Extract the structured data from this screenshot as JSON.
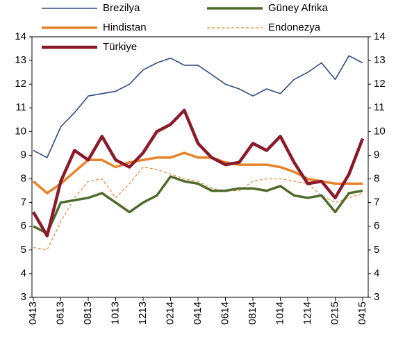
{
  "chart_data": {
    "type": "line",
    "categories": [
      "0413",
      null,
      "0613",
      null,
      "0813",
      null,
      "1013",
      null,
      "1213",
      null,
      "0214",
      null,
      "0414",
      null,
      "0614",
      null,
      "0814",
      null,
      "1014",
      null,
      "1214",
      null,
      "0215",
      null,
      "0415"
    ],
    "series": [
      {
        "name": "Brezilya",
        "color": "#2e4a7f",
        "values": [
          9.2,
          8.9,
          10.2,
          10.8,
          11.5,
          11.6,
          11.7,
          12.0,
          12.6,
          12.9,
          13.1,
          12.8,
          12.8,
          12.4,
          12.0,
          11.8,
          11.5,
          11.8,
          11.6,
          12.2,
          12.5,
          12.9,
          12.2,
          13.2,
          12.9
        ]
      },
      {
        "name": "Güney Afrika",
        "color": "#4e6b2a",
        "values": [
          6.0,
          5.7,
          7.0,
          7.1,
          7.2,
          7.4,
          7.0,
          6.6,
          7.0,
          7.3,
          8.1,
          7.9,
          7.8,
          7.5,
          7.5,
          7.6,
          7.6,
          7.5,
          7.7,
          7.3,
          7.2,
          7.3,
          6.6,
          7.4,
          7.5
        ]
      },
      {
        "name": "Hindistan",
        "color": "#e8832a",
        "values": [
          7.9,
          7.4,
          7.8,
          8.3,
          8.8,
          8.8,
          8.5,
          8.7,
          8.8,
          8.9,
          8.9,
          9.1,
          8.9,
          8.9,
          8.7,
          8.6,
          8.6,
          8.6,
          8.5,
          8.3,
          8.0,
          7.9,
          7.8,
          7.8,
          7.8
        ]
      },
      {
        "name": "Endonezya",
        "color": "#e8832a",
        "dashed": true,
        "values": [
          5.1,
          5.0,
          6.2,
          7.2,
          7.9,
          8.0,
          7.2,
          7.8,
          8.5,
          8.4,
          8.2,
          8.0,
          7.9,
          7.6,
          7.5,
          7.5,
          7.9,
          8.0,
          8.0,
          7.9,
          7.8,
          7.3,
          7.0,
          7.2,
          7.4
        ]
      },
      {
        "name": "Türkiye",
        "color": "#8b1a2b",
        "values": [
          6.6,
          5.6,
          7.9,
          9.2,
          8.8,
          9.8,
          8.8,
          8.5,
          9.1,
          10.0,
          10.3,
          10.9,
          9.5,
          8.9,
          8.6,
          8.7,
          9.5,
          9.2,
          9.8,
          8.7,
          7.8,
          7.9,
          7.2,
          8.2,
          9.7
        ]
      }
    ],
    "ylim": [
      3,
      14
    ],
    "yticks": [
      3,
      4,
      5,
      6,
      7,
      8,
      9,
      10,
      11,
      12,
      13,
      14
    ],
    "y2lim": [
      3,
      14
    ],
    "y2ticks": [
      3,
      4,
      5,
      6,
      7,
      8,
      9,
      10,
      11,
      12,
      13,
      14
    ]
  }
}
